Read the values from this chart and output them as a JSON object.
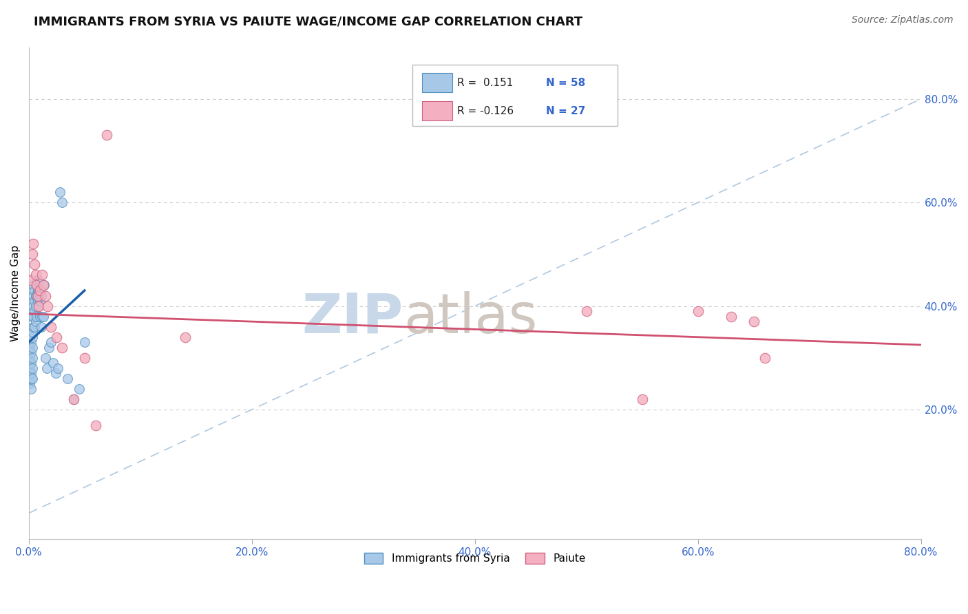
{
  "title": "IMMIGRANTS FROM SYRIA VS PAIUTE WAGE/INCOME GAP CORRELATION CHART",
  "source": "Source: ZipAtlas.com",
  "ylabel_label": "Wage/Income Gap",
  "xlim": [
    0.0,
    0.8
  ],
  "ylim": [
    -0.05,
    0.9
  ],
  "xticks": [
    0.0,
    0.2,
    0.4,
    0.6,
    0.8
  ],
  "yticks_right": [
    0.2,
    0.4,
    0.6,
    0.8
  ],
  "ytick_labels_right": [
    "20.0%",
    "40.0%",
    "60.0%",
    "80.0%"
  ],
  "xtick_labels": [
    "0.0%",
    "20.0%",
    "40.0%",
    "60.0%",
    "80.0%"
  ],
  "R_blue": 0.151,
  "N_blue": 58,
  "R_pink": -0.126,
  "N_pink": 27,
  "blue_color": "#a8c8e8",
  "blue_edge": "#5090c0",
  "pink_color": "#f4b0c0",
  "pink_edge": "#d06080",
  "blue_line_color": "#1a5fa8",
  "pink_line_color": "#d05070",
  "diag_line_color": "#b0c8e0",
  "watermark_zip_color": "#c8d8e8",
  "watermark_atlas_color": "#d0c8c0",
  "grid_color": "#cccccc",
  "blue_scatter_x": [
    0.001,
    0.001,
    0.001,
    0.001,
    0.001,
    0.002,
    0.002,
    0.002,
    0.002,
    0.002,
    0.002,
    0.003,
    0.003,
    0.003,
    0.003,
    0.003,
    0.003,
    0.003,
    0.004,
    0.004,
    0.004,
    0.004,
    0.004,
    0.005,
    0.005,
    0.005,
    0.005,
    0.006,
    0.006,
    0.006,
    0.007,
    0.007,
    0.007,
    0.008,
    0.008,
    0.008,
    0.009,
    0.009,
    0.01,
    0.01,
    0.011,
    0.011,
    0.012,
    0.013,
    0.014,
    0.015,
    0.016,
    0.018,
    0.02,
    0.022,
    0.024,
    0.026,
    0.028,
    0.03,
    0.035,
    0.04,
    0.045,
    0.05
  ],
  "blue_scatter_y": [
    0.28,
    0.3,
    0.32,
    0.25,
    0.27,
    0.26,
    0.29,
    0.31,
    0.33,
    0.27,
    0.24,
    0.3,
    0.32,
    0.34,
    0.28,
    0.26,
    0.35,
    0.38,
    0.36,
    0.4,
    0.42,
    0.44,
    0.38,
    0.39,
    0.41,
    0.43,
    0.36,
    0.37,
    0.4,
    0.42,
    0.38,
    0.42,
    0.44,
    0.41,
    0.43,
    0.45,
    0.4,
    0.43,
    0.38,
    0.41,
    0.36,
    0.42,
    0.38,
    0.38,
    0.44,
    0.3,
    0.28,
    0.32,
    0.33,
    0.29,
    0.27,
    0.28,
    0.62,
    0.6,
    0.26,
    0.22,
    0.24,
    0.33
  ],
  "pink_scatter_x": [
    0.002,
    0.003,
    0.004,
    0.005,
    0.006,
    0.007,
    0.008,
    0.009,
    0.01,
    0.012,
    0.013,
    0.015,
    0.017,
    0.02,
    0.025,
    0.03,
    0.04,
    0.05,
    0.06,
    0.07,
    0.14,
    0.5,
    0.55,
    0.6,
    0.63,
    0.65,
    0.66
  ],
  "pink_scatter_y": [
    0.45,
    0.5,
    0.52,
    0.48,
    0.46,
    0.44,
    0.42,
    0.4,
    0.43,
    0.46,
    0.44,
    0.42,
    0.4,
    0.36,
    0.34,
    0.32,
    0.22,
    0.3,
    0.17,
    0.73,
    0.34,
    0.39,
    0.22,
    0.39,
    0.38,
    0.37,
    0.3
  ],
  "blue_line_x": [
    0.0,
    0.05
  ],
  "blue_line_y_start": 0.33,
  "blue_line_y_end": 0.43,
  "pink_line_x": [
    0.0,
    0.8
  ],
  "pink_line_y_start": 0.385,
  "pink_line_y_end": 0.325
}
